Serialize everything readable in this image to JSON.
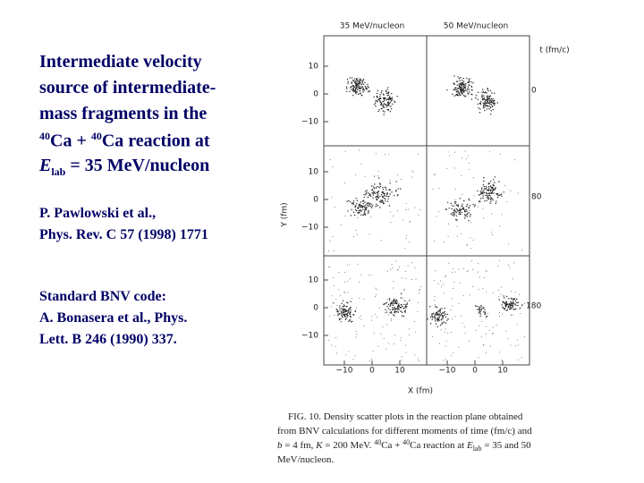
{
  "title": [
    "Intermediate velocity",
    "source of intermediate-",
    "mass fragments in the",
    [
      "40",
      "Ca + ",
      "40",
      "Ca reaction at"
    ],
    [
      "E",
      "lab",
      " = 35 MeV/nucleon"
    ]
  ],
  "reference": [
    "P. Pawlowski et al.,",
    "Phys. Rev. C 57 (1998) 1771"
  ],
  "code": [
    "Standard BNV code:",
    "A. Bonasera et al., Phys.",
    "Lett. B 246 (1990) 337."
  ],
  "figure": {
    "columns": [
      "35 MeV/nucleon",
      "50 MeV/nucleon"
    ],
    "time_label": "t (fm/c)",
    "times": [
      "0",
      "80",
      "180"
    ],
    "y_label": "Y (fm)",
    "x_label": "X (fm)",
    "y_ticks": [
      "10",
      "0",
      "−10"
    ],
    "x_ticks": [
      "−10",
      "0",
      "10"
    ],
    "caption": [
      "FIG. 10.  Density scatter plots in the reaction plane obtained",
      "from BNV calculations for different moments of time (fm/c) and",
      [
        "b",
        " = 4 fm, ",
        "K",
        " = 200 MeV.  ",
        "40",
        "Ca + ",
        "40",
        "Ca reaction at ",
        "E",
        "lab",
        " = 35 and 50"
      ],
      "MeV/nucleon."
    ]
  }
}
